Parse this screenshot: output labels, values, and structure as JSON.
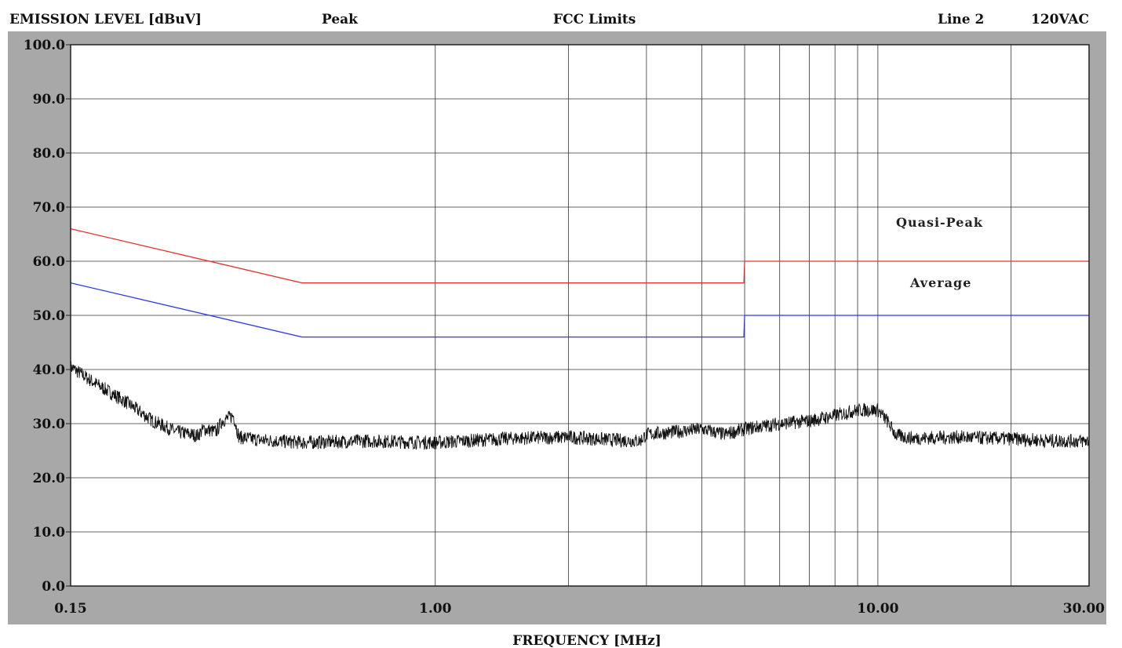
{
  "header": {
    "left_title": "EMISSION LEVEL [dBuV]",
    "detector": "Peak",
    "standard": "FCC Limits",
    "line": "Line 2",
    "voltage": "120VAC"
  },
  "chart_data": {
    "type": "line",
    "xlabel": "FREQUENCY [MHz]",
    "ylabel": "EMISSION LEVEL [dBuV]",
    "x_scale": "log",
    "xlim": [
      0.15,
      30
    ],
    "ylim": [
      0,
      100
    ],
    "x_tick_labels": [
      {
        "value": 0.15,
        "label": "0.15"
      },
      {
        "value": 1,
        "label": "1.00"
      },
      {
        "value": 10,
        "label": "10.00"
      },
      {
        "value": 30,
        "label": "30.00"
      }
    ],
    "y_tick_labels": [
      {
        "value": 0,
        "label": "0.0"
      },
      {
        "value": 10,
        "label": "10.0"
      },
      {
        "value": 20,
        "label": "20.0"
      },
      {
        "value": 30,
        "label": "30.0"
      },
      {
        "value": 40,
        "label": "40.0"
      },
      {
        "value": 50,
        "label": "50.0"
      },
      {
        "value": 60,
        "label": "60.0"
      },
      {
        "value": 70,
        "label": "70.0"
      },
      {
        "value": 80,
        "label": "80.0"
      },
      {
        "value": 90,
        "label": "90.0"
      },
      {
        "value": 100,
        "label": "100.0"
      }
    ],
    "x_gridlines": [
      0.15,
      1,
      2,
      3,
      4,
      5,
      6,
      7,
      8,
      9,
      10,
      20,
      30
    ],
    "grid": true,
    "series": [
      {
        "name": "Quasi-Peak",
        "color": "#e8302a",
        "x": [
          0.15,
          0.5,
          4.98,
          5.0,
          30
        ],
        "y": [
          66,
          56,
          56,
          60,
          60
        ]
      },
      {
        "name": "Average",
        "color": "#2a3ae8",
        "x": [
          0.15,
          0.5,
          4.98,
          5.0,
          30
        ],
        "y": [
          56,
          46,
          46,
          50,
          50
        ]
      },
      {
        "color": "#111111",
        "x": [
          0.15,
          0.17,
          0.2,
          0.23,
          0.26,
          0.29,
          0.3,
          0.32,
          0.33,
          0.35,
          0.36,
          0.4,
          0.5,
          0.7,
          1.0,
          1.5,
          2.0,
          2.5,
          2.9,
          3.0,
          3.5,
          4.0,
          4.5,
          5.0,
          6.0,
          7.0,
          8.0,
          9.0,
          10.0,
          10.5,
          11.0,
          12.0,
          15.0,
          20.0,
          25.0,
          30.0
        ],
        "y": [
          40.5,
          37.5,
          34,
          30.5,
          28.5,
          27.8,
          29,
          28.5,
          30.5,
          31.5,
          27.5,
          27,
          26.5,
          26.8,
          26.5,
          27.3,
          27.5,
          27,
          26.8,
          28,
          28.5,
          29,
          28,
          29,
          30,
          30.5,
          31.5,
          32.5,
          32.5,
          30.5,
          27.8,
          27.3,
          27.5,
          27.2,
          26.8,
          26.8
        ]
      }
    ]
  }
}
